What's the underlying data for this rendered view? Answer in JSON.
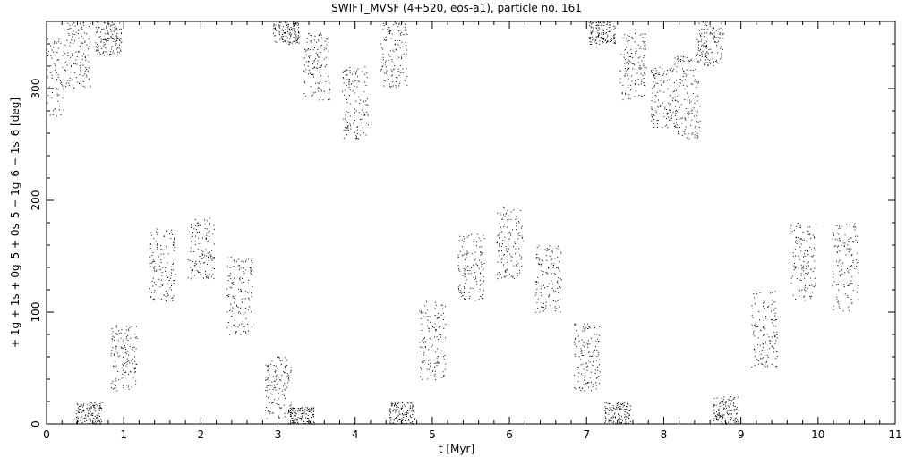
{
  "chart_data": {
    "type": "scatter",
    "title": "SWIFT_MVSF (4+520, eos-a1), particle no. 161",
    "xlabel": "t [Myr]",
    "ylabel": "+ 1g + 1s + 0g_5 + 0s_5 − 1g_6 − 1s_6 [deg]",
    "xlim": [
      0,
      11
    ],
    "ylim": [
      0,
      360
    ],
    "x_ticks": [
      "0",
      "1",
      "2",
      "3",
      "4",
      "5",
      "6",
      "7",
      "8",
      "9",
      "10",
      "11"
    ],
    "y_ticks": [
      "0",
      "100",
      "200",
      "300"
    ],
    "grid": false,
    "marker": "dot",
    "color": "#000000",
    "point_count_estimate": 4000,
    "envelope": [
      {
        "x": 0.05,
        "y_low": 275,
        "y_high": 345
      },
      {
        "x": 0.4,
        "y_low": 300,
        "y_high": 360
      },
      {
        "x": 0.8,
        "y_low": 330,
        "y_high": 360
      },
      {
        "x": 0.55,
        "y_low": 0,
        "y_high": 20
      },
      {
        "x": 1.0,
        "y_low": 30,
        "y_high": 90
      },
      {
        "x": 1.5,
        "y_low": 110,
        "y_high": 175
      },
      {
        "x": 2.0,
        "y_low": 130,
        "y_high": 185
      },
      {
        "x": 2.5,
        "y_low": 80,
        "y_high": 150
      },
      {
        "x": 3.0,
        "y_low": 5,
        "y_high": 60
      },
      {
        "x": 3.3,
        "y_low": 0,
        "y_high": 15
      },
      {
        "x": 3.1,
        "y_low": 340,
        "y_high": 360
      },
      {
        "x": 3.5,
        "y_low": 290,
        "y_high": 350
      },
      {
        "x": 4.0,
        "y_low": 255,
        "y_high": 320
      },
      {
        "x": 4.5,
        "y_low": 300,
        "y_high": 360
      },
      {
        "x": 4.6,
        "y_low": 0,
        "y_high": 20
      },
      {
        "x": 5.0,
        "y_low": 40,
        "y_high": 110
      },
      {
        "x": 5.5,
        "y_low": 110,
        "y_high": 170
      },
      {
        "x": 6.0,
        "y_low": 130,
        "y_high": 195
      },
      {
        "x": 6.5,
        "y_low": 100,
        "y_high": 160
      },
      {
        "x": 7.0,
        "y_low": 30,
        "y_high": 90
      },
      {
        "x": 7.4,
        "y_low": 0,
        "y_high": 20
      },
      {
        "x": 7.2,
        "y_low": 340,
        "y_high": 360
      },
      {
        "x": 7.6,
        "y_low": 290,
        "y_high": 350
      },
      {
        "x": 8.0,
        "y_low": 265,
        "y_high": 320
      },
      {
        "x": 8.3,
        "y_low": 255,
        "y_high": 330
      },
      {
        "x": 8.6,
        "y_low": 320,
        "y_high": 360
      },
      {
        "x": 8.8,
        "y_low": 0,
        "y_high": 25
      },
      {
        "x": 9.3,
        "y_low": 50,
        "y_high": 120
      },
      {
        "x": 9.8,
        "y_low": 110,
        "y_high": 180
      },
      {
        "x": 10.35,
        "y_low": 100,
        "y_high": 180
      }
    ]
  }
}
